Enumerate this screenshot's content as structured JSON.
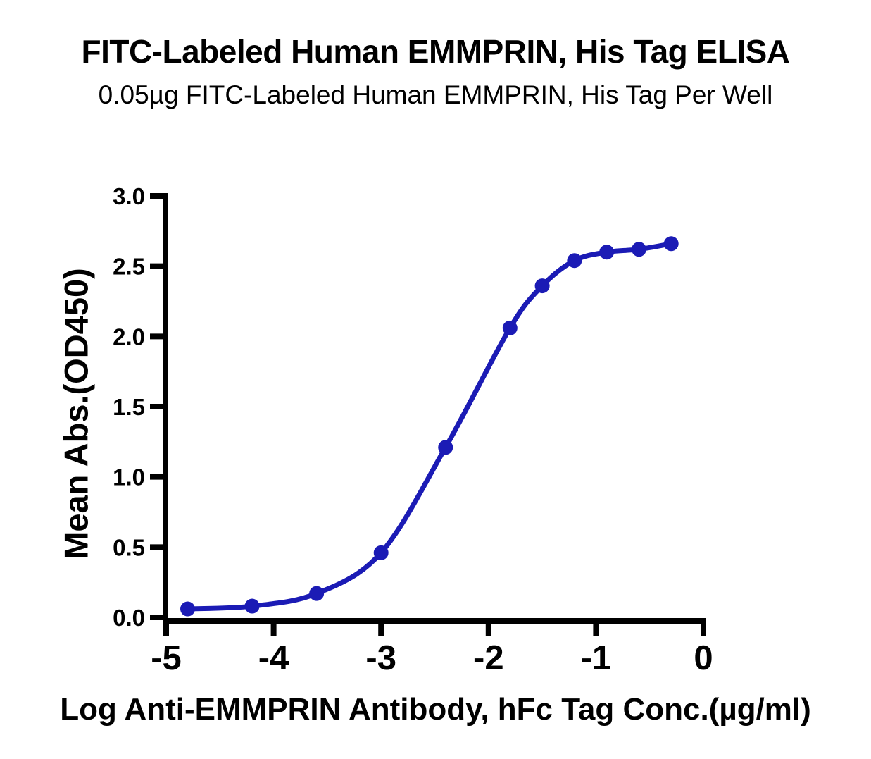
{
  "page": {
    "background_color": "#ffffff",
    "text_color": "#000000"
  },
  "chart_data": {
    "type": "line",
    "title": "FITC-Labeled Human EMMPRIN, His Tag ELISA",
    "subtitle": "0.05µg FITC-Labeled Human EMMPRIN, His Tag Per Well",
    "xlabel": "Log Anti-EMMPRIN Antibody, hFc Tag Conc.(µg/ml)",
    "ylabel": "Mean Abs.(OD450)",
    "xlim": [
      -5,
      0
    ],
    "ylim": [
      0.0,
      3.0
    ],
    "x_ticks": [
      "-5",
      "-4",
      "-3",
      "-2",
      "-1",
      "0"
    ],
    "y_ticks": [
      "0.0",
      "0.5",
      "1.0",
      "1.5",
      "2.0",
      "2.5",
      "3.0"
    ],
    "grid": false,
    "legend_position": "none",
    "axis_color": "#000000",
    "series": [
      {
        "x": [
          -4.8,
          -4.2,
          -3.6,
          -3.0,
          -2.4,
          -1.8,
          -1.5,
          -1.2,
          -0.9,
          -0.6,
          -0.3
        ],
        "y": [
          0.06,
          0.08,
          0.17,
          0.46,
          1.21,
          2.06,
          2.36,
          2.54,
          2.6,
          2.62,
          2.66
        ],
        "color": "#1b1bb5",
        "marker": "circle",
        "curve_style": "smooth-sigmoid"
      }
    ]
  }
}
